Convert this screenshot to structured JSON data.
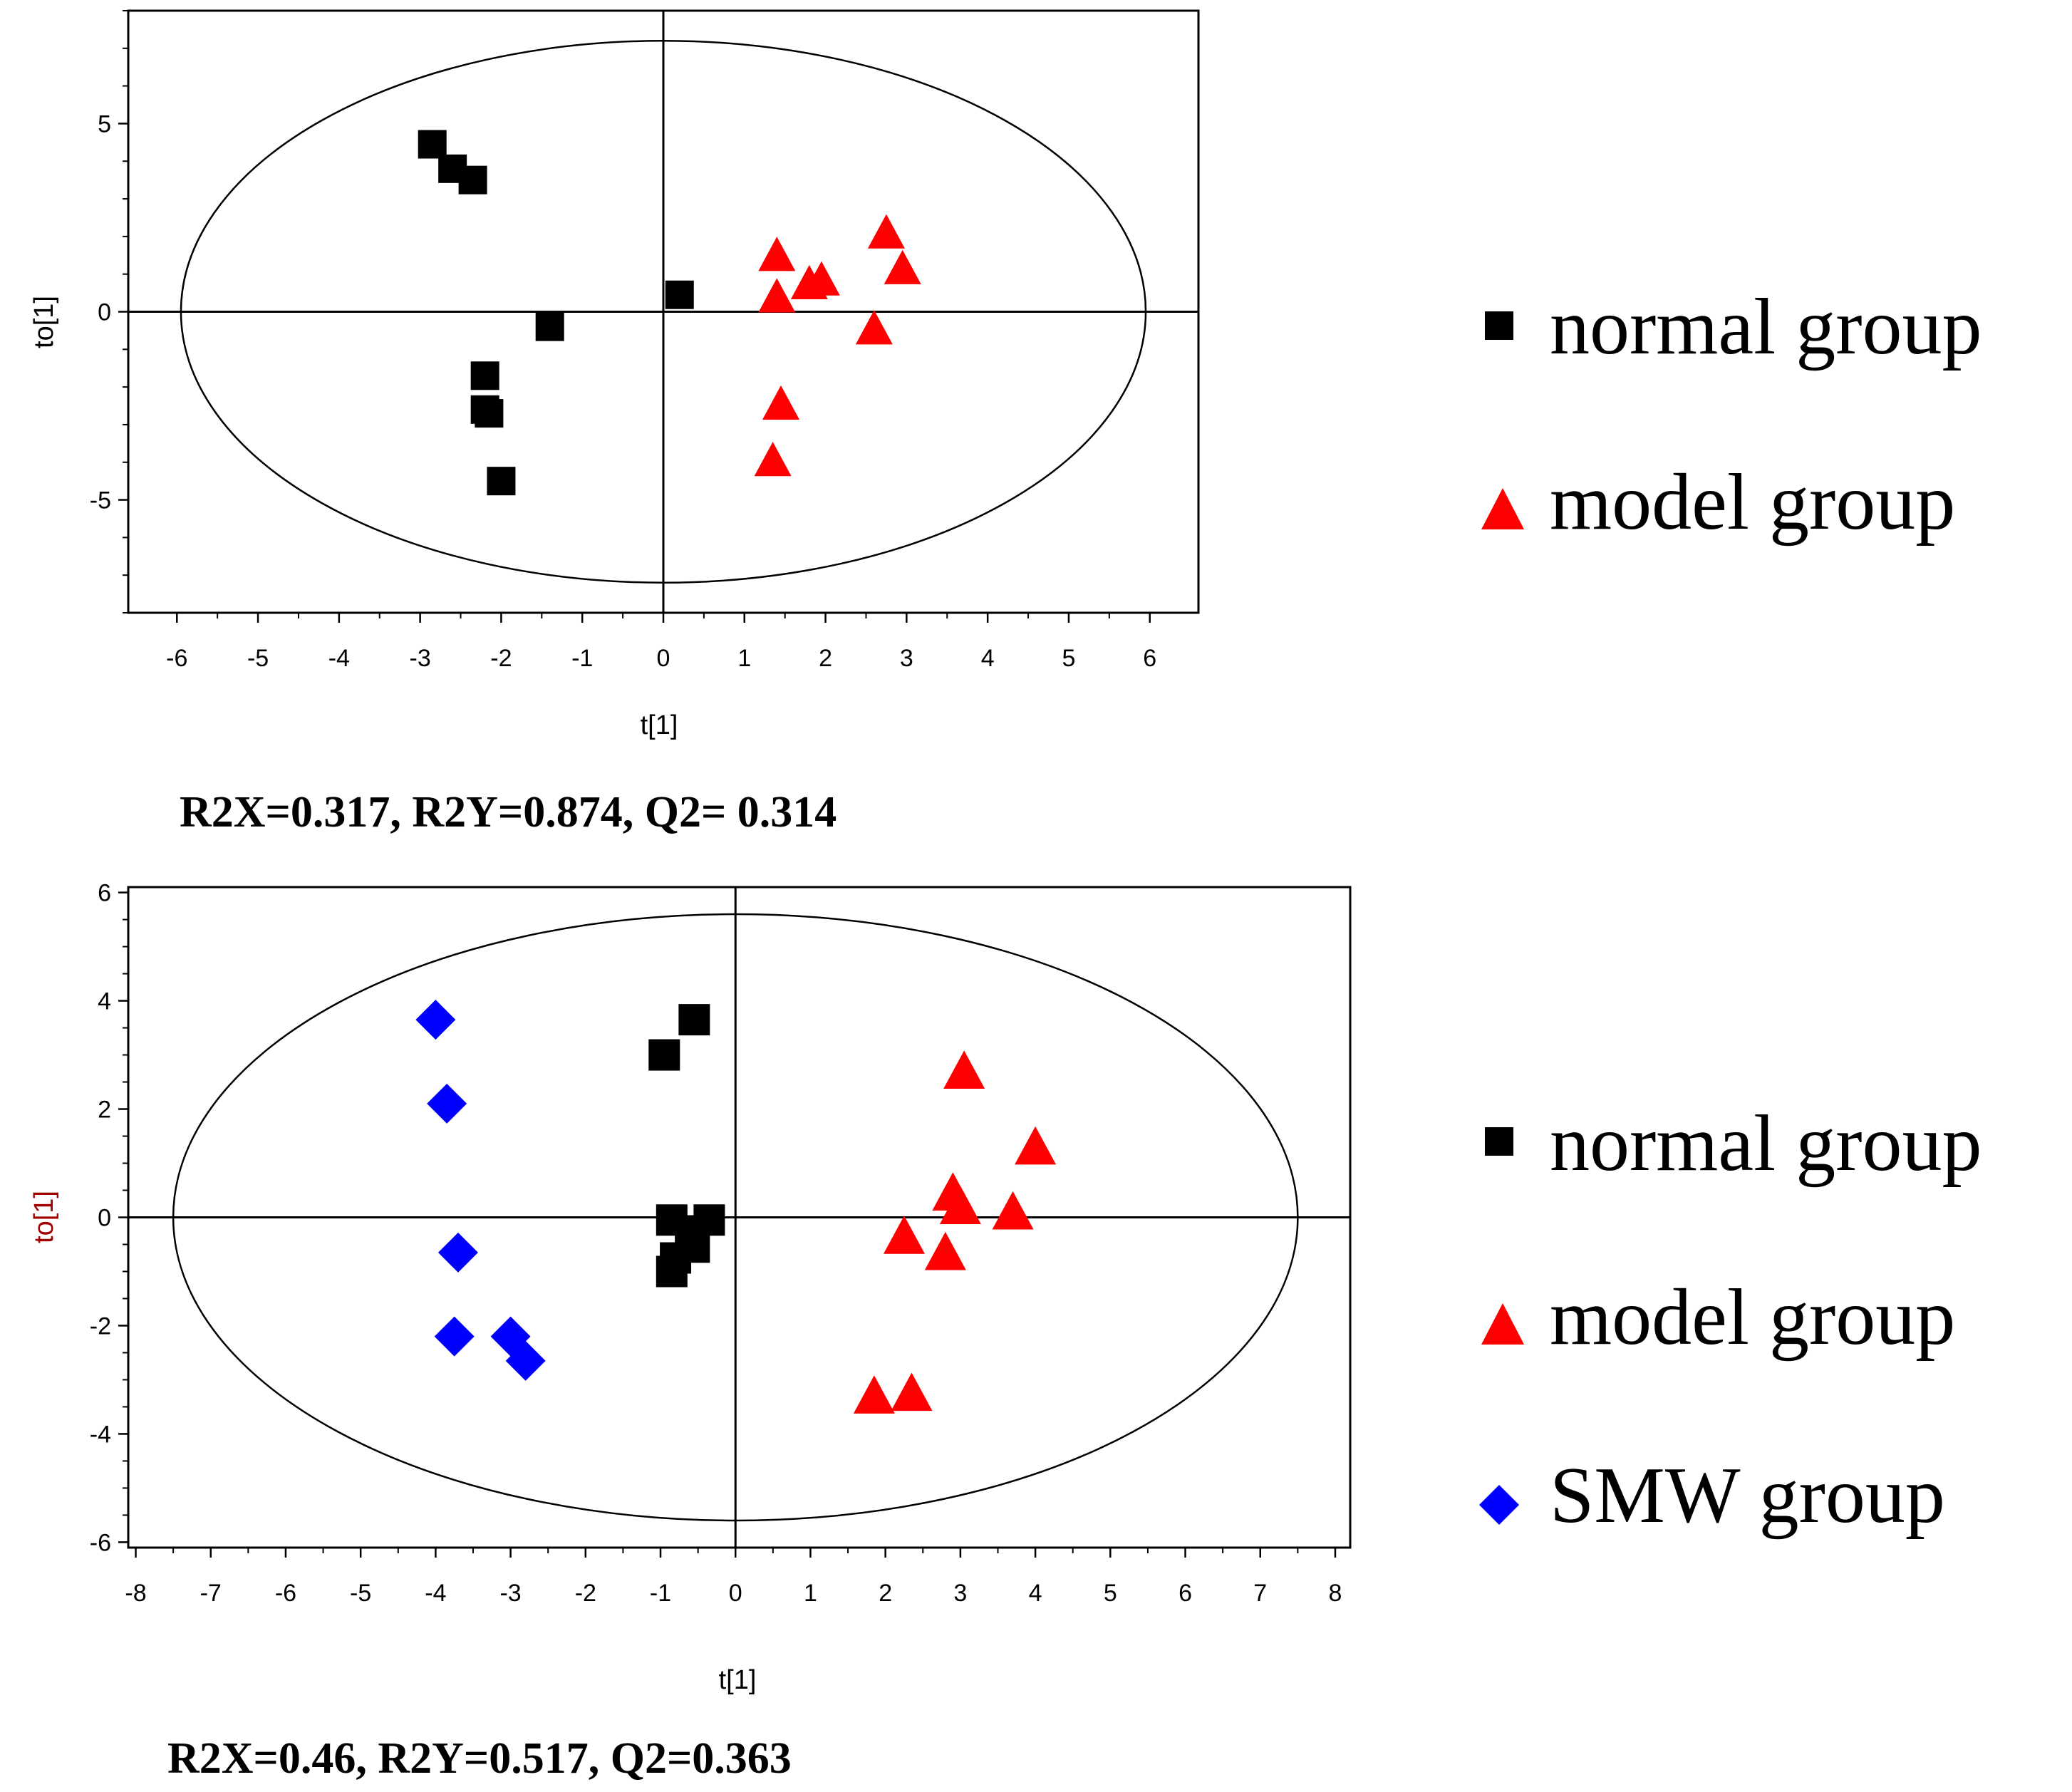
{
  "chart_data": [
    {
      "type": "scatter",
      "title": "",
      "xlabel": "t[1]",
      "ylabel": "to[1]",
      "xlim": [
        -6.6,
        6.6
      ],
      "ylim": [
        -8.0,
        8.0
      ],
      "xticks": [
        -6,
        -5,
        -4,
        -3,
        -2,
        -1,
        0,
        1,
        2,
        3,
        4,
        5,
        6
      ],
      "yticks": [
        -5,
        0,
        5
      ],
      "ellipse": {
        "rx": 5.95,
        "ry": 7.2
      },
      "stats": "R2X=0.317, R2Y=0.874, Q2= 0.314",
      "series": [
        {
          "name": "normal group",
          "marker": "square",
          "color": "#000000",
          "points": [
            [
              -2.85,
              4.45
            ],
            [
              -2.6,
              3.8
            ],
            [
              -2.35,
              3.5
            ],
            [
              -1.4,
              -0.4
            ],
            [
              -2.2,
              -1.7
            ],
            [
              -2.2,
              -2.6
            ],
            [
              -2.15,
              -2.7
            ],
            [
              -2.0,
              -4.5
            ],
            [
              0.2,
              0.45
            ]
          ]
        },
        {
          "name": "model group",
          "marker": "triangle",
          "color": "#ff0000",
          "points": [
            [
              1.4,
              1.5
            ],
            [
              1.4,
              0.4
            ],
            [
              1.8,
              0.75
            ],
            [
              1.95,
              0.85
            ],
            [
              2.75,
              2.1
            ],
            [
              2.95,
              1.15
            ],
            [
              2.6,
              -0.45
            ],
            [
              1.45,
              -2.45
            ],
            [
              1.35,
              -3.95
            ]
          ]
        }
      ]
    },
    {
      "type": "scatter",
      "title": "",
      "xlabel": "t[1]",
      "ylabel": "to[1]",
      "xlim": [
        -8.1,
        8.2
      ],
      "ylim": [
        -6.1,
        6.1
      ],
      "xticks": [
        -8,
        -7,
        -6,
        -5,
        -4,
        -3,
        -2,
        -1,
        0,
        1,
        2,
        3,
        4,
        5,
        6,
        7,
        8
      ],
      "yticks": [
        -6,
        -4,
        -2,
        0,
        2,
        4,
        6
      ],
      "ellipse": {
        "rx": 7.5,
        "ry": 5.6
      },
      "stats": "R2X=0.46, R2Y=0.517, Q2=0.363",
      "series": [
        {
          "name": "normal group",
          "marker": "square",
          "color": "#000000",
          "points": [
            [
              -0.55,
              3.65
            ],
            [
              -0.95,
              3.0
            ],
            [
              -0.85,
              -0.05
            ],
            [
              -0.35,
              -0.05
            ],
            [
              -0.6,
              -0.25
            ],
            [
              -0.55,
              -0.55
            ],
            [
              -0.8,
              -0.75
            ],
            [
              -0.85,
              -1.0
            ]
          ]
        },
        {
          "name": "model group",
          "marker": "triangle",
          "color": "#ff0000",
          "points": [
            [
              3.05,
              2.7
            ],
            [
              4.0,
              1.3
            ],
            [
              2.9,
              0.45
            ],
            [
              3.0,
              0.2
            ],
            [
              3.7,
              0.1
            ],
            [
              2.25,
              -0.35
            ],
            [
              2.8,
              -0.65
            ],
            [
              1.85,
              -3.3
            ],
            [
              2.35,
              -3.25
            ]
          ]
        },
        {
          "name": "SMW group",
          "marker": "diamond",
          "color": "#0000ff",
          "points": [
            [
              -4.0,
              3.65
            ],
            [
              -3.85,
              2.1
            ],
            [
              -3.7,
              -0.65
            ],
            [
              -3.75,
              -2.2
            ],
            [
              -3.0,
              -2.2
            ],
            [
              -2.8,
              -2.65
            ]
          ]
        }
      ]
    }
  ]
}
